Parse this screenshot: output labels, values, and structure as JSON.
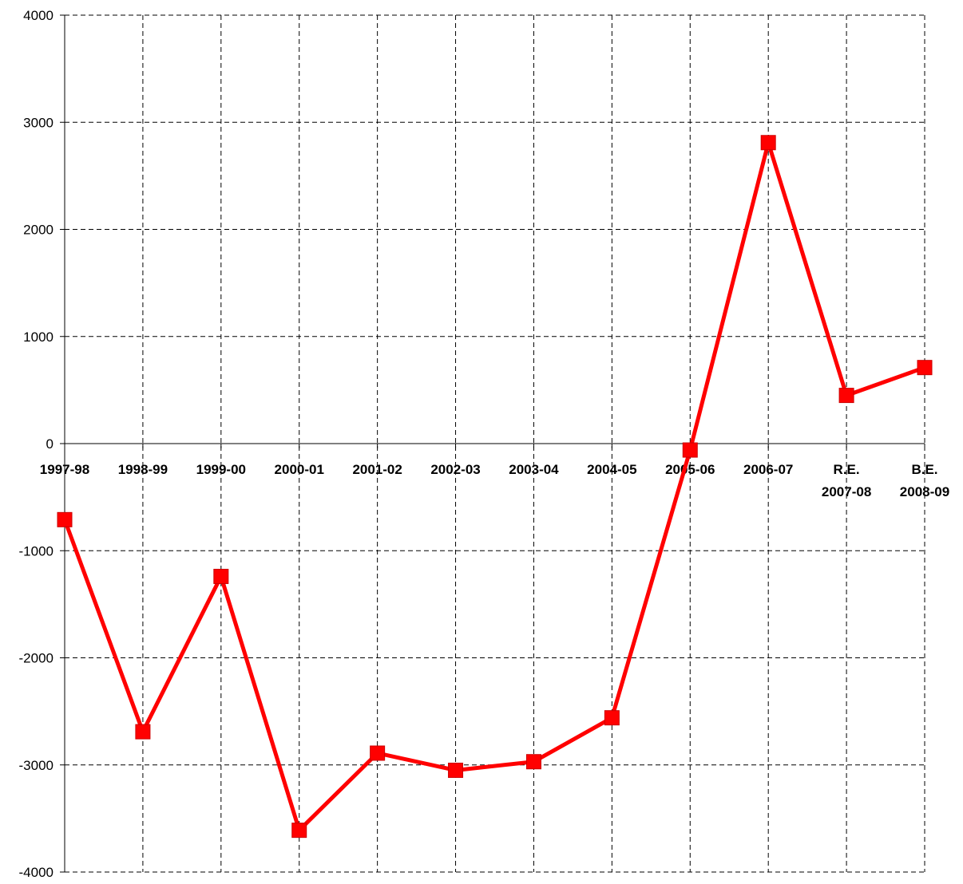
{
  "chart_data": {
    "type": "line",
    "title": "",
    "xlabel": "",
    "ylabel": "",
    "ylim": [
      -4000,
      4000
    ],
    "yticks": [
      4000,
      3000,
      2000,
      1000,
      0,
      -1000,
      -2000,
      -3000,
      -4000
    ],
    "grid": true,
    "legend": "none",
    "categories": [
      [
        "1997-98"
      ],
      [
        "1998-99"
      ],
      [
        "1999-00"
      ],
      [
        "2000-01"
      ],
      [
        "2001-02"
      ],
      [
        "2002-03"
      ],
      [
        "2003-04"
      ],
      [
        "2004-05"
      ],
      [
        "2005-06"
      ],
      [
        "2006-07"
      ],
      [
        "R.E.",
        "2007-08"
      ],
      [
        "B.E.",
        "2008-09"
      ]
    ],
    "series": [
      {
        "color": "#ff0000",
        "marker": "square",
        "values": [
          -710,
          -2690,
          -1240,
          -3610,
          -2890,
          -3050,
          -2970,
          -2560,
          -60,
          2810,
          450,
          710
        ]
      }
    ]
  }
}
